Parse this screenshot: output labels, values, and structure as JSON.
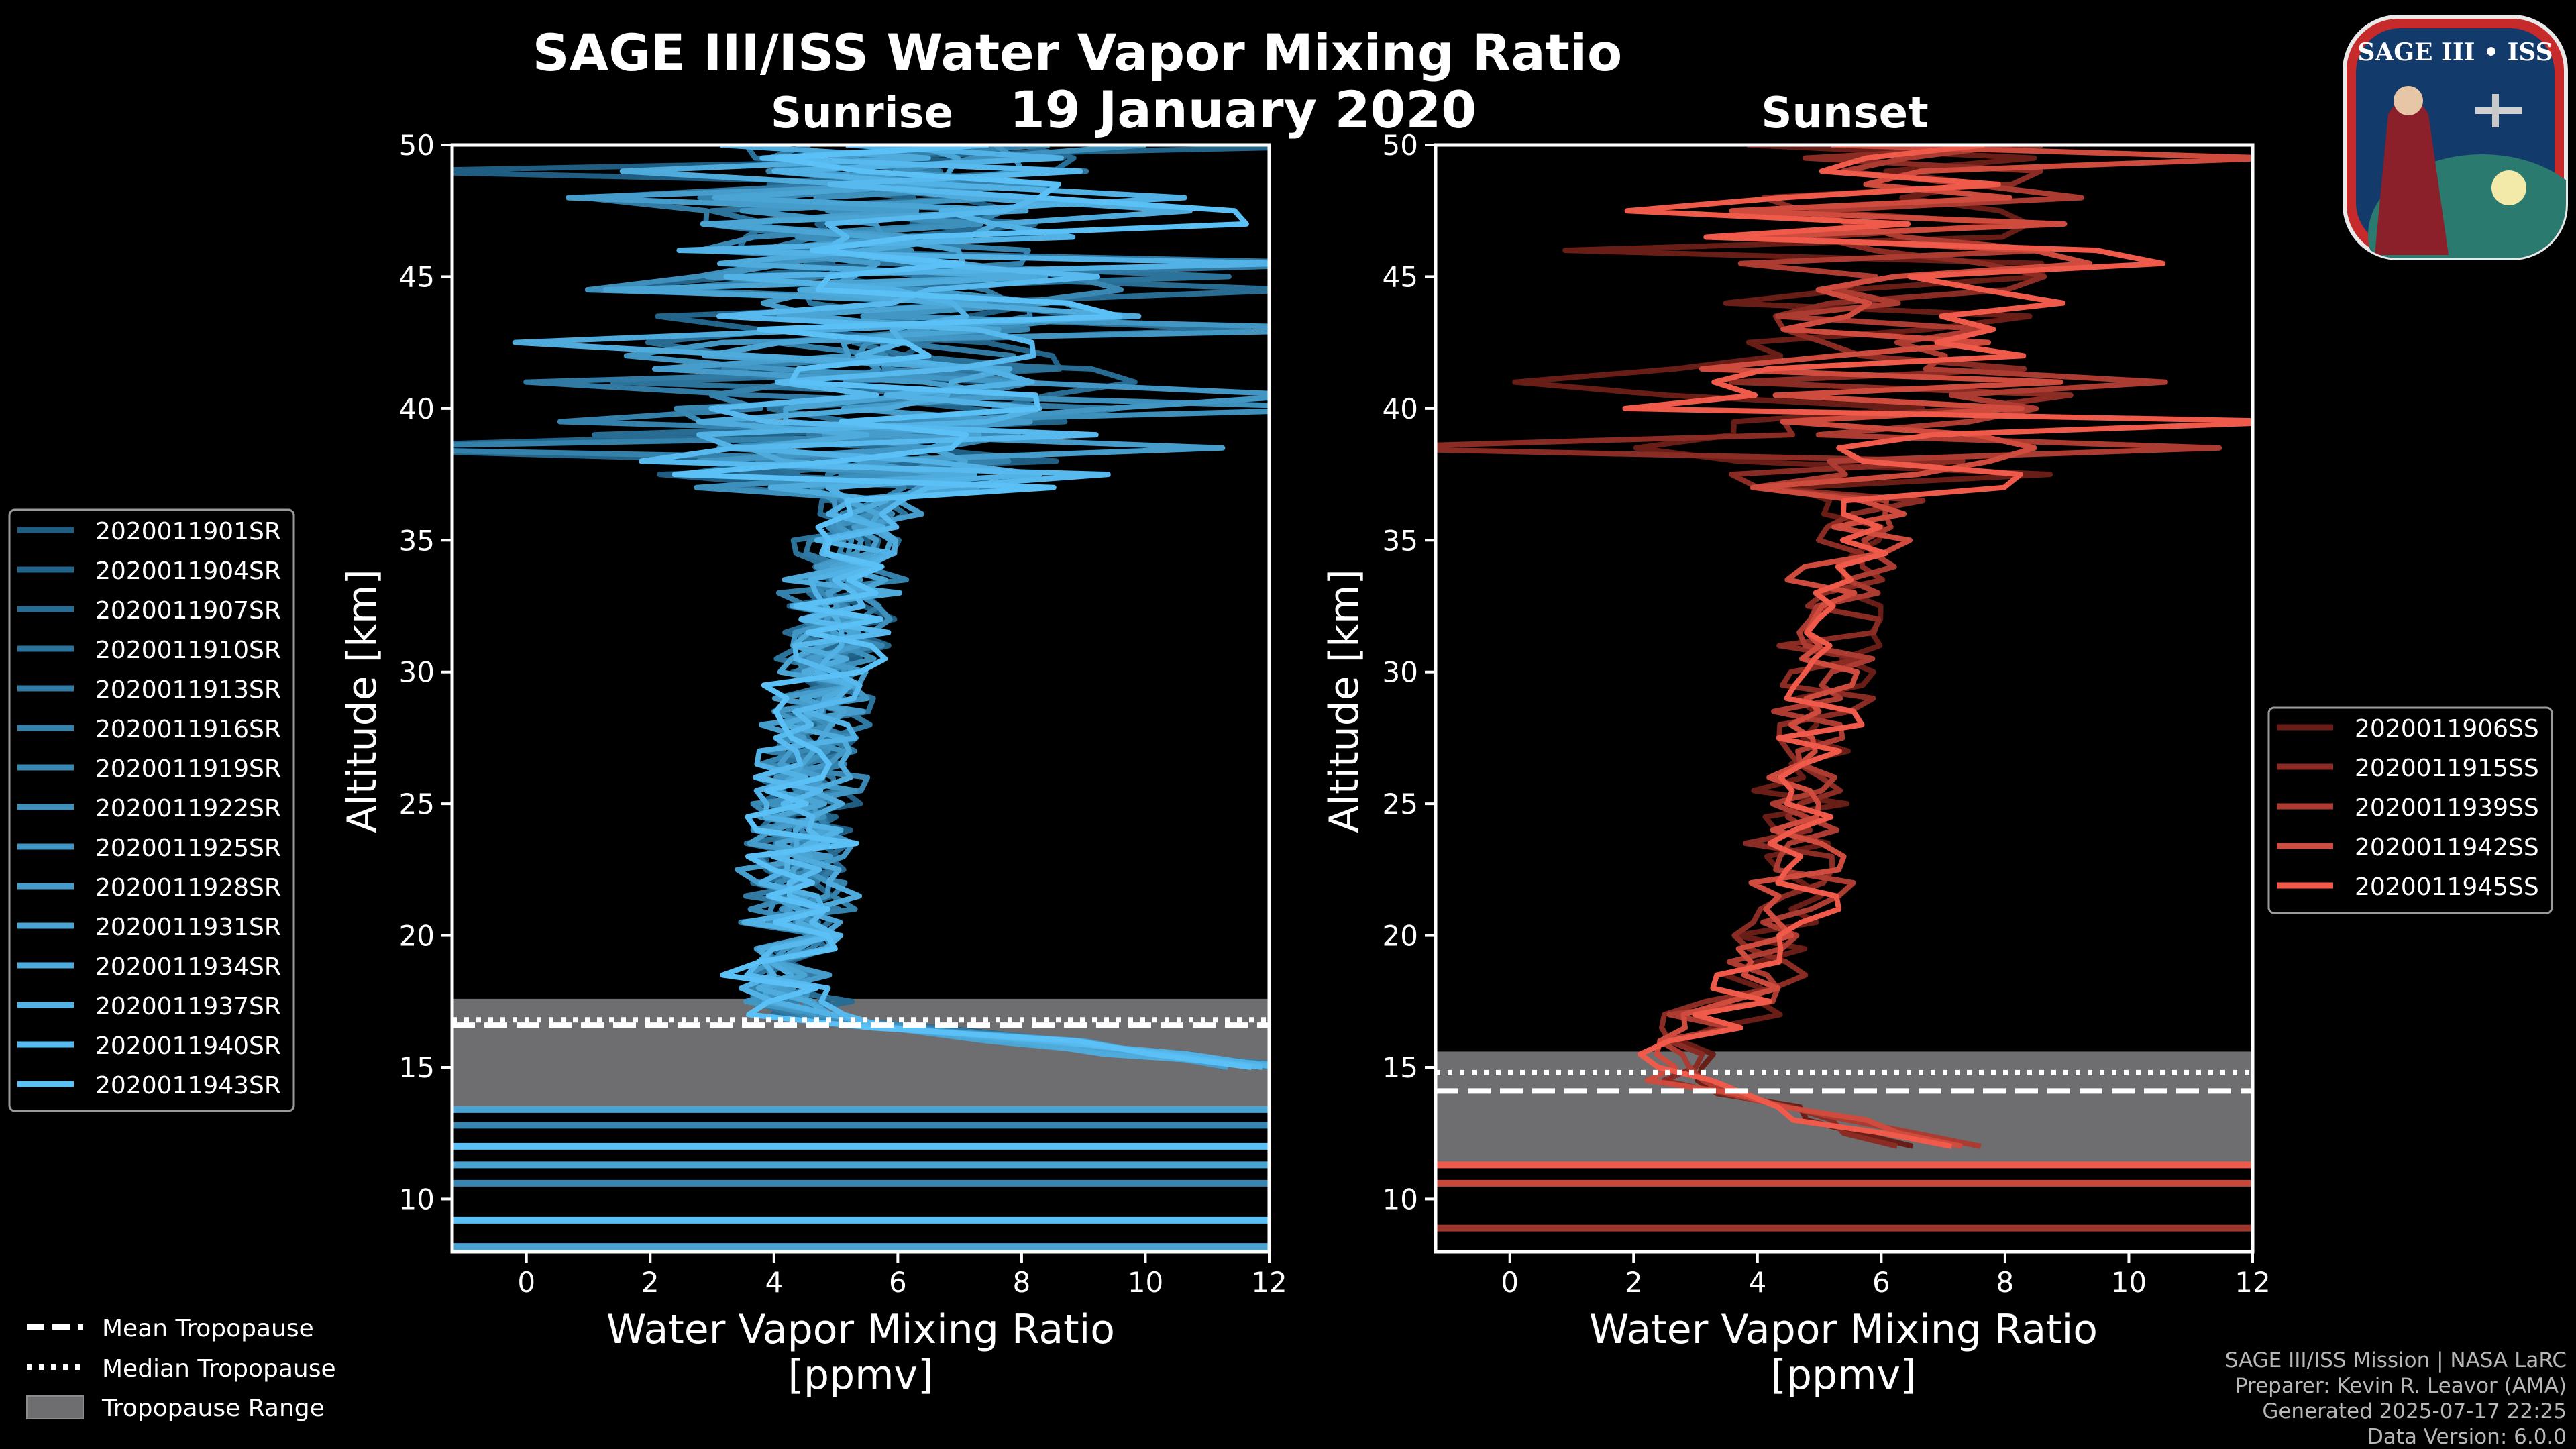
{
  "header": {
    "title": "SAGE III/ISS Water Vapor Mixing Ratio",
    "date": "19 January 2020",
    "logo_text": "SAGE III • ISS"
  },
  "footer": {
    "line1": "SAGE III/ISS Mission | NASA LaRC",
    "line2": "Preparer: Kevin R. Leavor (AMA)",
    "line3": "Generated 2025-07-17 22:25",
    "line4": "Data Version: 6.0.0"
  },
  "tropopause_legend": {
    "mean": "Mean Tropopause",
    "median": "Median Tropopause",
    "range": "Tropopause Range"
  },
  "colors": {
    "sunrise_light": "#5bc0f5",
    "sunrise_dark": "#0b3d5c",
    "sunset_light": "#f05a4a",
    "sunset_dark": "#3a0806",
    "trop_range": "#6e6e70",
    "background": "#000000"
  },
  "chart_data": [
    {
      "type": "line",
      "panel": "Sunrise",
      "title": "Sunrise",
      "xlabel": "Water Vapor Mixing Ratio",
      "xlabel2": "[ppmv]",
      "ylabel": "Altitude [km]",
      "xlim": [
        -1.2,
        12
      ],
      "ylim": [
        8,
        50
      ],
      "xticks": [
        0,
        2,
        4,
        6,
        8,
        10,
        12
      ],
      "yticks": [
        10,
        15,
        20,
        25,
        30,
        35,
        40,
        45,
        50
      ],
      "legend_position": "left",
      "tropopause": {
        "mean": 16.6,
        "median": 16.8,
        "range": [
          13.4,
          17.6
        ]
      },
      "low_level_lines_km": [
        8.1,
        8.2,
        9.2,
        10.6,
        11.3,
        12.0,
        12.8,
        13.4
      ],
      "series": [
        {
          "name": "2020011901SR",
          "seed": 1
        },
        {
          "name": "2020011904SR",
          "seed": 2
        },
        {
          "name": "2020011907SR",
          "seed": 3
        },
        {
          "name": "2020011910SR",
          "seed": 4
        },
        {
          "name": "2020011913SR",
          "seed": 5
        },
        {
          "name": "2020011916SR",
          "seed": 6
        },
        {
          "name": "2020011919SR",
          "seed": 7
        },
        {
          "name": "2020011922SR",
          "seed": 8
        },
        {
          "name": "2020011925SR",
          "seed": 9
        },
        {
          "name": "2020011928SR",
          "seed": 10
        },
        {
          "name": "2020011931SR",
          "seed": 11
        },
        {
          "name": "2020011934SR",
          "seed": 12
        },
        {
          "name": "2020011937SR",
          "seed": 13
        },
        {
          "name": "2020011940SR",
          "seed": 14
        },
        {
          "name": "2020011943SR",
          "seed": 15
        }
      ],
      "typical_profile": {
        "altitude_km": [
          15,
          17,
          18,
          20,
          22,
          25,
          28,
          30,
          32,
          35,
          37,
          40,
          42,
          45,
          48,
          50
        ],
        "mixing_ratio_ppmv": [
          12.0,
          4.5,
          4.1,
          4.3,
          4.4,
          4.5,
          4.6,
          4.8,
          5.0,
          5.3,
          5.5,
          6.2,
          6.0,
          6.0,
          6.0,
          6.0
        ]
      }
    },
    {
      "type": "line",
      "panel": "Sunset",
      "title": "Sunset",
      "xlabel": "Water Vapor Mixing Ratio",
      "xlabel2": "[ppmv]",
      "ylabel": "Altitude [km]",
      "xlim": [
        -1.2,
        12
      ],
      "ylim": [
        8,
        50
      ],
      "xticks": [
        0,
        2,
        4,
        6,
        8,
        10,
        12
      ],
      "yticks": [
        10,
        15,
        20,
        25,
        30,
        35,
        40,
        45,
        50
      ],
      "legend_position": "right",
      "tropopause": {
        "mean": 14.1,
        "median": 14.8,
        "range": [
          11.3,
          15.6
        ]
      },
      "low_level_lines_km": [
        8.9,
        10.6,
        11.3
      ],
      "series": [
        {
          "name": "2020011906SS",
          "seed": 21
        },
        {
          "name": "2020011915SS",
          "seed": 22
        },
        {
          "name": "2020011939SS",
          "seed": 23
        },
        {
          "name": "2020011942SS",
          "seed": 24
        },
        {
          "name": "2020011945SS",
          "seed": 25
        }
      ],
      "typical_profile": {
        "altitude_km": [
          12,
          14,
          15,
          16,
          18,
          20,
          22,
          25,
          28,
          30,
          32,
          35,
          37,
          40,
          42,
          45,
          48,
          50
        ],
        "mixing_ratio_ppmv": [
          7.0,
          3.5,
          2.6,
          3.2,
          3.8,
          4.2,
          4.6,
          4.8,
          5.0,
          5.1,
          5.3,
          5.6,
          5.8,
          6.0,
          6.2,
          6.5,
          6.5,
          6.5
        ]
      }
    }
  ]
}
